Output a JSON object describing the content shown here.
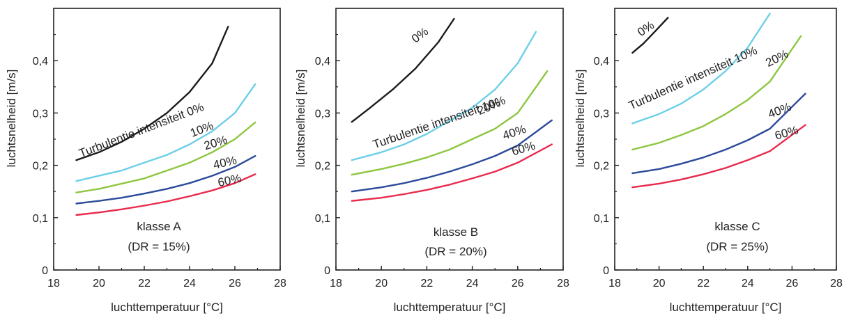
{
  "chart_data": [
    {
      "type": "line",
      "xlabel": "luchttemperatuur [°C]",
      "ylabel": "luchtsnelheid [m/s]",
      "xlim": [
        18,
        28
      ],
      "ylim": [
        0,
        0.5
      ],
      "xticks": [
        "18",
        "20",
        "22",
        "24",
        "26",
        "28"
      ],
      "yticks": [
        "0",
        "0,1",
        "0,2",
        "0,3",
        "0,4"
      ],
      "annotation": [
        "klasse A",
        "(DR = 15%)"
      ],
      "series": [
        {
          "name": "Turbulentie intensiteit 0%",
          "color": "#1a1a1a",
          "x": [
            19,
            20,
            21,
            22,
            23,
            24,
            25,
            25.7
          ],
          "y": [
            0.21,
            0.225,
            0.245,
            0.27,
            0.3,
            0.34,
            0.395,
            0.465
          ]
        },
        {
          "name": "10%",
          "color": "#6ccfe8",
          "x": [
            19,
            20,
            21,
            22,
            23,
            24,
            25,
            26,
            26.9
          ],
          "y": [
            0.17,
            0.18,
            0.19,
            0.205,
            0.22,
            0.24,
            0.265,
            0.3,
            0.355
          ]
        },
        {
          "name": "20%",
          "color": "#8dc63f",
          "x": [
            19,
            20,
            21,
            22,
            23,
            24,
            25,
            26,
            26.9
          ],
          "y": [
            0.148,
            0.155,
            0.165,
            0.175,
            0.19,
            0.205,
            0.225,
            0.25,
            0.282
          ]
        },
        {
          "name": "40%",
          "color": "#2c4a9a",
          "x": [
            19,
            20,
            21,
            22,
            23,
            24,
            25,
            26,
            26.9
          ],
          "y": [
            0.127,
            0.132,
            0.138,
            0.146,
            0.155,
            0.166,
            0.18,
            0.197,
            0.218
          ]
        },
        {
          "name": "60%",
          "color": "#e8294b",
          "x": [
            19,
            20,
            21,
            22,
            23,
            24,
            25,
            26,
            26.9
          ],
          "y": [
            0.105,
            0.11,
            0.116,
            0.123,
            0.131,
            0.141,
            0.152,
            0.166,
            0.183
          ]
        }
      ]
    },
    {
      "type": "line",
      "xlabel": "luchttemperatuur [°C]",
      "ylabel": "luchtsnelheid [m/s]",
      "xlim": [
        18,
        28
      ],
      "ylim": [
        0,
        0.5
      ],
      "xticks": [
        "18",
        "20",
        "22",
        "24",
        "26",
        "28"
      ],
      "yticks": [
        "0",
        "0,1",
        "0,2",
        "0,3",
        "0,4"
      ],
      "annotation": [
        "klasse B",
        "(DR = 20%)"
      ],
      "series": [
        {
          "name": "0%",
          "color": "#1a1a1a",
          "x": [
            18.7,
            19.5,
            20.5,
            21.5,
            22.5,
            23.2
          ],
          "y": [
            0.283,
            0.31,
            0.345,
            0.385,
            0.435,
            0.48
          ]
        },
        {
          "name": "Turbulentie intensiteit 10%",
          "color": "#6ccfe8",
          "x": [
            18.7,
            20,
            21,
            22,
            23,
            24,
            25,
            26,
            26.8
          ],
          "y": [
            0.21,
            0.225,
            0.24,
            0.26,
            0.285,
            0.31,
            0.345,
            0.395,
            0.455
          ]
        },
        {
          "name": "20%",
          "color": "#8dc63f",
          "x": [
            18.7,
            20,
            21,
            22,
            23,
            24,
            25,
            26,
            27.3
          ],
          "y": [
            0.182,
            0.193,
            0.203,
            0.215,
            0.23,
            0.25,
            0.27,
            0.3,
            0.38
          ]
        },
        {
          "name": "40%",
          "color": "#2c4a9a",
          "x": [
            18.7,
            20,
            21,
            22,
            23,
            24,
            25,
            26,
            27.5
          ],
          "y": [
            0.15,
            0.158,
            0.166,
            0.176,
            0.188,
            0.202,
            0.218,
            0.238,
            0.286
          ]
        },
        {
          "name": "60%",
          "color": "#e8294b",
          "x": [
            18.7,
            20,
            21,
            22,
            23,
            24,
            25,
            26,
            27.5
          ],
          "y": [
            0.132,
            0.138,
            0.145,
            0.153,
            0.163,
            0.175,
            0.188,
            0.205,
            0.24
          ]
        }
      ]
    },
    {
      "type": "line",
      "xlabel": "luchttemperatuur [°C]",
      "ylabel": "luchtsnelheid [m/s]",
      "xlim": [
        18,
        28
      ],
      "ylim": [
        0,
        0.5
      ],
      "xticks": [
        "18",
        "20",
        "22",
        "24",
        "26",
        "28"
      ],
      "yticks": [
        "0",
        "0,1",
        "0,2",
        "0,3",
        "0,4"
      ],
      "annotation": [
        "klasse C",
        "(DR = 25%)"
      ],
      "series": [
        {
          "name": "0%",
          "color": "#1a1a1a",
          "x": [
            18.8,
            19.3,
            19.8,
            20.4
          ],
          "y": [
            0.415,
            0.433,
            0.455,
            0.482
          ]
        },
        {
          "name": "Turbulentie intensiteit 10%",
          "color": "#6ccfe8",
          "x": [
            18.8,
            20,
            21,
            22,
            23,
            24,
            25
          ],
          "y": [
            0.28,
            0.298,
            0.318,
            0.345,
            0.38,
            0.425,
            0.49
          ]
        },
        {
          "name": "20%",
          "color": "#8dc63f",
          "x": [
            18.8,
            20,
            21,
            22,
            23,
            24,
            25,
            26.4
          ],
          "y": [
            0.23,
            0.243,
            0.258,
            0.275,
            0.298,
            0.325,
            0.36,
            0.447
          ]
        },
        {
          "name": "40%",
          "color": "#2c4a9a",
          "x": [
            18.8,
            20,
            21,
            22,
            23,
            24,
            25,
            26.6
          ],
          "y": [
            0.185,
            0.193,
            0.203,
            0.215,
            0.23,
            0.248,
            0.27,
            0.337
          ]
        },
        {
          "name": "60%",
          "color": "#e8294b",
          "x": [
            18.8,
            20,
            21,
            22,
            23,
            24,
            25,
            26.6
          ],
          "y": [
            0.158,
            0.165,
            0.173,
            0.183,
            0.195,
            0.21,
            0.227,
            0.277
          ]
        }
      ]
    }
  ]
}
